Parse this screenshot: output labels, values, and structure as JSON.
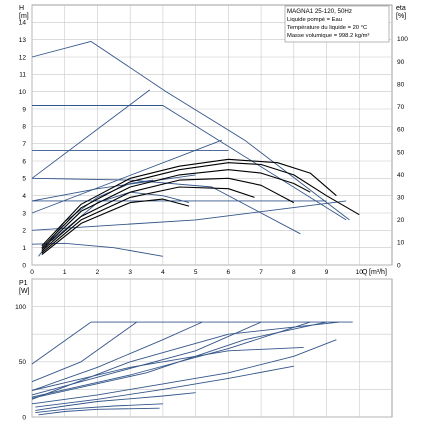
{
  "chart_data": [
    {
      "type": "line",
      "name": "head-chart",
      "y_axis_label": "H",
      "y_axis_unit": "[m]",
      "right_axis_label": "eta",
      "right_axis_unit": "[%]",
      "x_axis_label": "Q",
      "x_axis_unit": "[m³/h]",
      "xlim": [
        0,
        11
      ],
      "ylim": [
        0,
        15
      ],
      "right_ylim": [
        0,
        115
      ],
      "x_ticks": [
        0,
        1,
        2,
        3,
        4,
        5,
        6,
        7,
        8,
        9,
        10
      ],
      "y_ticks": [
        0,
        1,
        2,
        3,
        4,
        5,
        6,
        7,
        8,
        9,
        10,
        11,
        12,
        13,
        14
      ],
      "right_ticks": [
        0,
        10,
        20,
        30,
        40,
        50,
        60,
        70,
        80,
        90,
        100
      ],
      "legend": {
        "title": "MAGNA1 25-120, 50Hz",
        "lines": [
          "Liquide pompé = Eau",
          "Température du liquide = 20 °C",
          "Masse volumique = 998.2 kg/m³"
        ]
      },
      "grid": true,
      "series": [
        {
          "color": "#34568b",
          "points": [
            [
              0,
              12.0
            ],
            [
              1.8,
              12.9
            ],
            [
              4.1,
              10.0
            ],
            [
              6.5,
              7.2
            ],
            [
              9.7,
              2.6
            ]
          ]
        },
        {
          "color": "#34568b",
          "points": [
            [
              0,
              9.2
            ],
            [
              4.0,
              9.2
            ],
            [
              9.6,
              2.6
            ]
          ]
        },
        {
          "color": "#34568b",
          "points": [
            [
              0,
              5.0
            ],
            [
              3.6,
              10.1
            ]
          ]
        },
        {
          "color": "#34568b",
          "points": [
            [
              0,
              6.6
            ],
            [
              6.0,
              6.6
            ]
          ]
        },
        {
          "color": "#34568b",
          "points": [
            [
              0,
              3.0
            ],
            [
              5.8,
              7.2
            ]
          ]
        },
        {
          "color": "#34568b",
          "points": [
            [
              0,
              3.7
            ],
            [
              2.0,
              4.4
            ],
            [
              5.0,
              5.2
            ]
          ]
        },
        {
          "color": "#34568b",
          "points": [
            [
              0,
              3.7
            ],
            [
              9.0,
              3.7
            ]
          ]
        },
        {
          "color": "#34568b",
          "points": [
            [
              0,
              2.0
            ],
            [
              5.0,
              2.6
            ],
            [
              9.6,
              3.7
            ]
          ]
        },
        {
          "color": "#34568b",
          "points": [
            [
              0,
              5.0
            ],
            [
              3.0,
              4.9
            ],
            [
              5.5,
              4.5
            ],
            [
              8.2,
              1.8
            ]
          ]
        },
        {
          "color": "#34568b",
          "points": [
            [
              0.6,
              1.4
            ],
            [
              2.0,
              3.6
            ],
            [
              3.0,
              4.2
            ],
            [
              4.0,
              4.0
            ],
            [
              4.8,
              3.6
            ]
          ]
        },
        {
          "color": "#34568b",
          "points": [
            [
              0,
              1.2
            ],
            [
              1.0,
              1.25
            ],
            [
              2.5,
              1.0
            ],
            [
              4.0,
              0.5
            ]
          ]
        },
        {
          "color": "#34568b",
          "points": [
            [
              0.2,
              0.5
            ],
            [
              1.0,
              2.5
            ],
            [
              2.0,
              3.9
            ],
            [
              3.0,
              4.7
            ],
            [
              3.7,
              4.9
            ]
          ]
        },
        {
          "color": "#000000",
          "points": [
            [
              0.3,
              1.1
            ],
            [
              1.5,
              3.5
            ],
            [
              3.0,
              5.0
            ],
            [
              4.5,
              5.7
            ],
            [
              6.0,
              6.1
            ],
            [
              7.5,
              5.9
            ],
            [
              8.5,
              5.3
            ],
            [
              9.3,
              4.0
            ]
          ]
        },
        {
          "color": "#000000",
          "points": [
            [
              0.3,
              1.0
            ],
            [
              1.5,
              3.3
            ],
            [
              3.0,
              4.8
            ],
            [
              4.5,
              5.5
            ],
            [
              6.0,
              5.9
            ],
            [
              7.0,
              5.8
            ],
            [
              8.0,
              5.2
            ],
            [
              9.0,
              4.0
            ],
            [
              10.0,
              2.9
            ]
          ]
        },
        {
          "color": "#000000",
          "points": [
            [
              0.3,
              0.9
            ],
            [
              1.5,
              3.1
            ],
            [
              3.0,
              4.5
            ],
            [
              4.5,
              5.2
            ],
            [
              6.0,
              5.5
            ],
            [
              7.0,
              5.3
            ],
            [
              8.0,
              4.7
            ],
            [
              8.5,
              4.2
            ]
          ]
        },
        {
          "color": "#000000",
          "points": [
            [
              0.3,
              0.8
            ],
            [
              1.5,
              2.8
            ],
            [
              3.0,
              4.2
            ],
            [
              4.5,
              4.9
            ],
            [
              6.0,
              5.0
            ],
            [
              7.0,
              4.6
            ],
            [
              8.0,
              3.6
            ]
          ]
        },
        {
          "color": "#000000",
          "points": [
            [
              0.3,
              0.7
            ],
            [
              1.5,
              2.6
            ],
            [
              3.0,
              3.9
            ],
            [
              4.5,
              4.5
            ],
            [
              6.0,
              4.4
            ],
            [
              6.8,
              3.9
            ]
          ]
        },
        {
          "color": "#000000",
          "points": [
            [
              0.3,
              0.6
            ],
            [
              1.5,
              2.4
            ],
            [
              3.0,
              3.6
            ],
            [
              4.0,
              3.8
            ],
            [
              4.8,
              3.4
            ]
          ]
        }
      ]
    },
    {
      "type": "line",
      "name": "power-chart",
      "y_axis_label": "P1",
      "y_axis_unit": "[W]",
      "xlim": [
        0,
        11
      ],
      "ylim": [
        0,
        125
      ],
      "y_ticks": [
        0,
        50,
        100
      ],
      "grid": true,
      "series": [
        {
          "color": "#34568b",
          "points": [
            [
              1.8,
              86
            ],
            [
              9.8,
              86
            ]
          ]
        },
        {
          "color": "#34568b",
          "points": [
            [
              0,
              48
            ],
            [
              1.8,
              86
            ]
          ]
        },
        {
          "color": "#34568b",
          "points": [
            [
              0,
              32
            ],
            [
              1.5,
              50
            ],
            [
              3.2,
              86
            ]
          ]
        },
        {
          "color": "#34568b",
          "points": [
            [
              0,
              24
            ],
            [
              2.0,
              45
            ],
            [
              4.0,
              70
            ],
            [
              5.2,
              86
            ]
          ]
        },
        {
          "color": "#34568b",
          "points": [
            [
              0,
              20
            ],
            [
              2.5,
              40
            ],
            [
              5.0,
              60
            ],
            [
              7.0,
              86
            ]
          ]
        },
        {
          "color": "#34568b",
          "points": [
            [
              0,
              18
            ],
            [
              3.0,
              38
            ],
            [
              6.0,
              62
            ],
            [
              8.5,
              86
            ]
          ]
        },
        {
          "color": "#34568b",
          "points": [
            [
              0,
              17
            ],
            [
              3.5,
              40
            ],
            [
              6.5,
              70
            ],
            [
              9.0,
              86
            ]
          ]
        },
        {
          "color": "#34568b",
          "points": [
            [
              0,
              16
            ],
            [
              3.0,
              50
            ],
            [
              6.0,
              75
            ],
            [
              9.4,
              86
            ]
          ]
        },
        {
          "color": "#34568b",
          "points": [
            [
              0,
              24
            ],
            [
              3.0,
              45
            ],
            [
              6.0,
              60
            ],
            [
              8.3,
              63
            ]
          ]
        },
        {
          "color": "#34568b",
          "points": [
            [
              0,
              12
            ],
            [
              2.0,
              20
            ],
            [
              4.0,
              30
            ],
            [
              6.0,
              40
            ],
            [
              8.0,
              55
            ],
            [
              9.3,
              70
            ]
          ]
        },
        {
          "color": "#34568b",
          "points": [
            [
              0.1,
              9
            ],
            [
              2.0,
              16
            ],
            [
              4.0,
              25
            ],
            [
              6.0,
              35
            ],
            [
              8.0,
              46
            ]
          ]
        },
        {
          "color": "#34568b",
          "points": [
            [
              0.1,
              6
            ],
            [
              1.0,
              10
            ],
            [
              2.0,
              14
            ],
            [
              4.0,
              19
            ],
            [
              5.0,
              22
            ]
          ]
        },
        {
          "color": "#34568b",
          "points": [
            [
              0.1,
              4
            ],
            [
              1.0,
              7
            ],
            [
              2.5,
              10
            ],
            [
              4.0,
              12
            ]
          ]
        },
        {
          "color": "#34568b",
          "points": [
            [
              0.2,
              2
            ],
            [
              1.0,
              5
            ],
            [
              2.0,
              7
            ],
            [
              3.9,
              8
            ]
          ]
        }
      ]
    }
  ]
}
